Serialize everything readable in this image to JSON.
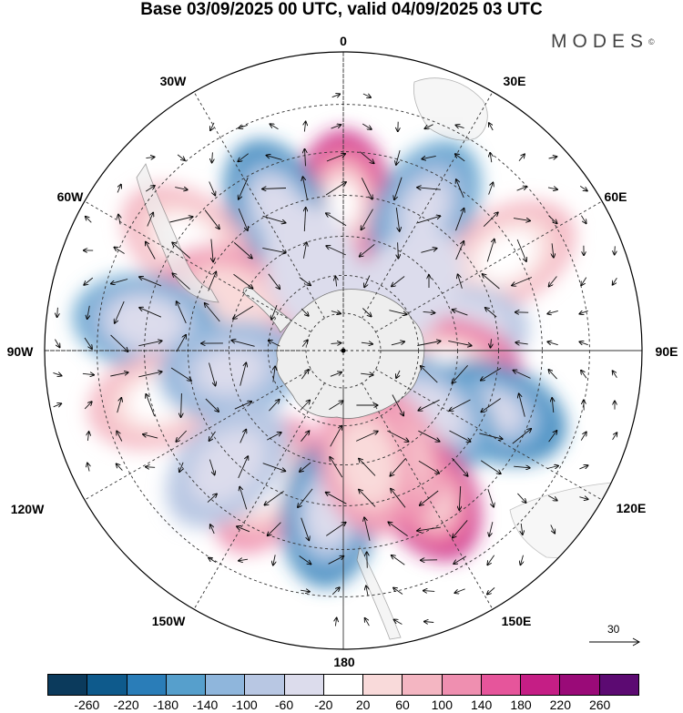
{
  "header": {
    "title": "Base 03/09/2025 00 UTC, valid 04/09/2025 03 UTC",
    "brand": "MODES",
    "brand_mark": "©"
  },
  "map": {
    "projection": "south polar stereographic",
    "lon_labels": {
      "top": "0",
      "top_left": "30W",
      "top_right": "30E",
      "upper_left": "60W",
      "upper_right": "60E",
      "left": "90W",
      "right": "90E",
      "lower_left": "120W",
      "lower_right": "120E",
      "bottom_left": "150W",
      "bottom_right": "150E",
      "bottom": "180"
    },
    "reference_vector": {
      "label": "30"
    },
    "anomalies": [
      {
        "lon": 0,
        "lat": -52,
        "value": 220
      },
      {
        "lon": -25,
        "lat": -50,
        "value": -200
      },
      {
        "lon": 30,
        "lat": -48,
        "value": -140
      },
      {
        "lon": -55,
        "lat": -42,
        "value": 100
      },
      {
        "lon": -65,
        "lat": -58,
        "value": 120
      },
      {
        "lon": 60,
        "lat": -42,
        "value": 100
      },
      {
        "lon": -82,
        "lat": -40,
        "value": -160
      },
      {
        "lon": 82,
        "lat": -60,
        "value": -80
      },
      {
        "lon": 98,
        "lat": -62,
        "value": 180
      },
      {
        "lon": -105,
        "lat": -42,
        "value": 100
      },
      {
        "lon": -100,
        "lat": -60,
        "value": -100
      },
      {
        "lon": 112,
        "lat": -48,
        "value": -180
      },
      {
        "lon": 125,
        "lat": -62,
        "value": -160
      },
      {
        "lon": -150,
        "lat": -50,
        "value": 140
      },
      {
        "lon": -135,
        "lat": -48,
        "value": -60
      },
      {
        "lon": 150,
        "lat": -48,
        "value": 220
      },
      {
        "lon": 155,
        "lat": -60,
        "value": 140
      },
      {
        "lon": -175,
        "lat": -48,
        "value": -200
      },
      {
        "lon": 168,
        "lat": -60,
        "value": 120
      },
      {
        "lon": -20,
        "lat": -68,
        "value": -20
      },
      {
        "lon": 45,
        "lat": -68,
        "value": -40
      }
    ]
  },
  "colorbar": {
    "colors": [
      "#0b3a5c",
      "#0e5a8c",
      "#2a7db8",
      "#569fcc",
      "#8fb6dc",
      "#b8c7e3",
      "#dcdcec",
      "#ffffff",
      "#f9dada",
      "#f4b6c2",
      "#ef8fb0",
      "#e6559b",
      "#c51e85",
      "#9a0a78",
      "#5c0a72"
    ],
    "ticks": [
      "-260",
      "-220",
      "-180",
      "-140",
      "-100",
      "-60",
      "-20",
      "20",
      "60",
      "100",
      "140",
      "180",
      "220",
      "260"
    ]
  }
}
